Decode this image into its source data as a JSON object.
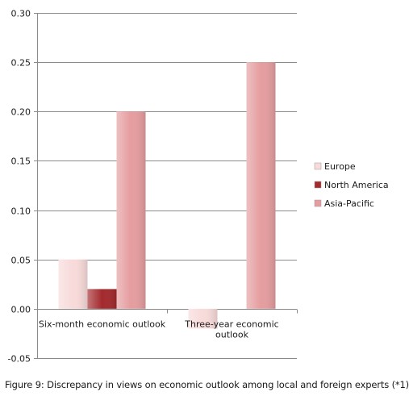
{
  "figure": {
    "caption": "Figure 9: Discrepancy in views on economic outlook among local and foreign experts (*1)"
  },
  "chart_data": {
    "type": "bar",
    "categories": [
      "Six-month economic outlook",
      "Three-year economic outlook"
    ],
    "category_lines": [
      [
        "Six-month economic outlook"
      ],
      [
        "Three-year economic",
        "outlook"
      ]
    ],
    "series": [
      {
        "name": "Europe",
        "values": [
          0.05,
          -0.02
        ],
        "color": "#f8dada"
      },
      {
        "name": "North America",
        "values": [
          0.02,
          0.0
        ],
        "color": "#a32a2e"
      },
      {
        "name": "Asia-Pacific",
        "values": [
          0.2,
          0.25
        ],
        "color": "#e59d9f"
      }
    ],
    "ylim": [
      -0.05,
      0.3
    ],
    "yticks": [
      -0.05,
      0.0,
      0.05,
      0.1,
      0.15,
      0.2,
      0.25,
      0.3
    ],
    "ytick_labels": [
      "-0.05",
      "0.00",
      "0.05",
      "0.10",
      "0.15",
      "0.20",
      "0.25",
      "0.30"
    ],
    "grid": true,
    "legend_position": "right",
    "title": "",
    "xlabel": "",
    "ylabel": ""
  }
}
